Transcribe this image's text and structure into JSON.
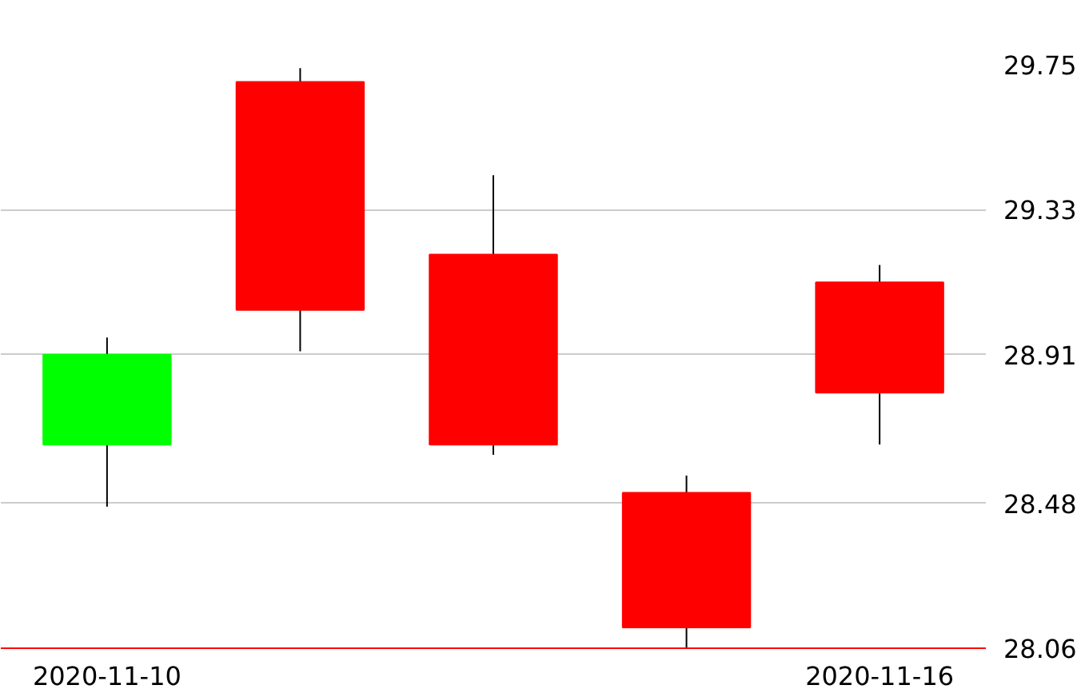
{
  "chart_data": {
    "type": "candlestick",
    "categories": [
      "2020-11-10",
      null,
      null,
      null,
      "2020-11-16"
    ],
    "ohlc": [
      [
        28.65,
        28.96,
        28.47,
        28.91
      ],
      [
        29.7,
        29.74,
        28.92,
        29.04
      ],
      [
        29.2,
        29.43,
        28.62,
        28.65
      ],
      [
        28.51,
        28.56,
        28.06,
        28.12
      ],
      [
        29.12,
        29.17,
        28.65,
        28.8
      ]
    ],
    "colors": [
      "#00ff00",
      "#ff0000",
      "#ff0000",
      "#ff0000",
      "#ff0000"
    ],
    "ylim": [
      28.06,
      29.75
    ],
    "yticks": [
      28.06,
      28.48,
      28.91,
      29.33,
      29.75
    ],
    "grid": "y"
  }
}
